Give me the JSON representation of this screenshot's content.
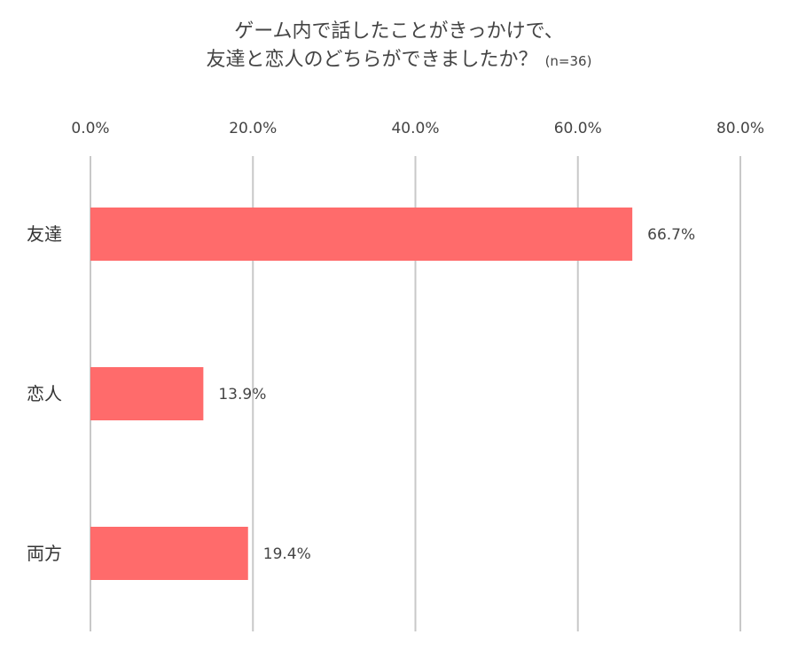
{
  "chart_data": {
    "type": "bar",
    "orientation": "horizontal",
    "title_line1": "ゲーム内で話したことがきっかけで、",
    "title_line2": "友達と恋人のどちらができましたか？",
    "title_note": "(n=36)",
    "categories": [
      "友達",
      "恋人",
      "両方"
    ],
    "values": [
      66.7,
      13.9,
      19.4
    ],
    "value_labels": [
      "66.7%",
      "13.9%",
      "19.4%"
    ],
    "xlim": [
      0,
      80
    ],
    "xticks": [
      0,
      20,
      40,
      60,
      80
    ],
    "xtick_labels": [
      "0.0%",
      "20.0%",
      "40.0%",
      "60.0%",
      "80.0%"
    ],
    "grid": true,
    "bar_color": "#ff6b6b",
    "grid_color": "#c8c8c8"
  }
}
